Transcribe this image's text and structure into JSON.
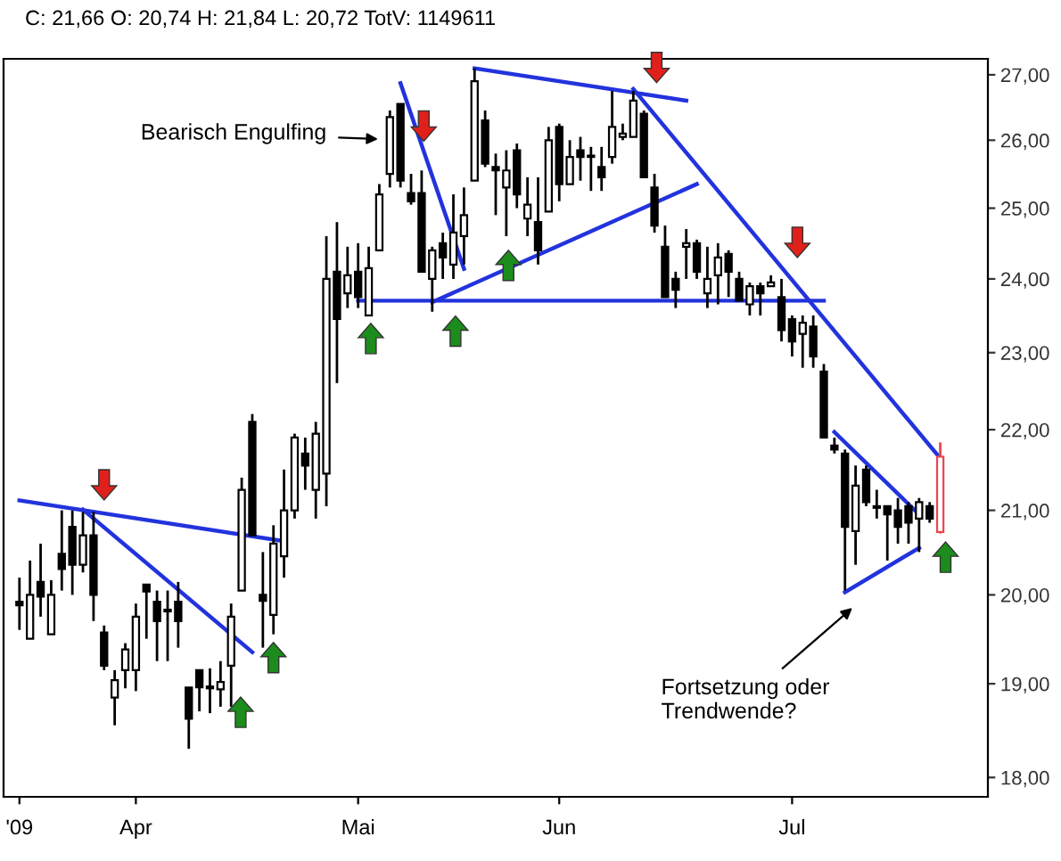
{
  "chart_data": {
    "type": "candlestick",
    "title": "C: 21,66 O: 20,74 H: 21,84 L: 20,72 TotV: 1149611",
    "categories": [
      "'09",
      null,
      null,
      null,
      null,
      null,
      null,
      null,
      null,
      null,
      null,
      "Apr",
      null,
      null,
      null,
      null,
      null,
      null,
      null,
      null,
      null,
      null,
      null,
      null,
      null,
      null,
      null,
      null,
      null,
      null,
      null,
      null,
      "Mai",
      null,
      null,
      null,
      null,
      null,
      null,
      null,
      null,
      null,
      null,
      null,
      null,
      null,
      null,
      null,
      null,
      null,
      null,
      "Jun",
      null,
      null,
      null,
      null,
      null,
      null,
      null,
      null,
      null,
      null,
      null,
      null,
      null,
      null,
      null,
      null,
      null,
      null,
      null,
      null,
      null,
      "Jul",
      null,
      null,
      null,
      null,
      null,
      null,
      null,
      null,
      null,
      null,
      null,
      null,
      null,
      null
    ],
    "ohlc": [
      [
        19.92,
        20.2,
        19.6,
        19.88
      ],
      [
        19.5,
        20.4,
        19.5,
        20.0
      ],
      [
        20.15,
        20.6,
        19.75,
        19.98
      ],
      [
        19.55,
        20.17,
        19.55,
        20.0
      ],
      [
        20.48,
        21.0,
        20.05,
        20.3
      ],
      [
        20.8,
        21.0,
        20.0,
        20.35
      ],
      [
        20.35,
        20.98,
        20.26,
        20.7
      ],
      [
        20.7,
        20.98,
        19.7,
        20.0
      ],
      [
        19.57,
        19.65,
        19.15,
        19.2
      ],
      [
        18.85,
        19.15,
        18.55,
        19.04
      ],
      [
        19.15,
        19.45,
        18.95,
        19.38
      ],
      [
        19.15,
        19.9,
        18.92,
        19.75
      ],
      [
        20.12,
        20.12,
        19.5,
        20.04
      ],
      [
        19.92,
        20.05,
        19.25,
        19.7
      ],
      [
        19.83,
        20.05,
        19.25,
        19.81
      ],
      [
        19.92,
        20.15,
        19.4,
        19.7
      ],
      [
        18.96,
        18.96,
        18.3,
        18.62
      ],
      [
        19.15,
        19.15,
        18.7,
        18.96
      ],
      [
        18.97,
        19.17,
        18.68,
        18.95
      ],
      [
        18.94,
        19.25,
        18.75,
        19.02
      ],
      [
        19.2,
        19.9,
        18.75,
        19.75
      ],
      [
        20.05,
        21.4,
        20.05,
        21.25
      ],
      [
        22.1,
        22.2,
        20.7,
        20.7
      ],
      [
        20.0,
        20.5,
        19.4,
        19.93
      ],
      [
        19.77,
        20.82,
        19.55,
        20.6
      ],
      [
        20.45,
        21.5,
        20.2,
        21.0
      ],
      [
        21.0,
        21.95,
        20.9,
        21.9
      ],
      [
        21.7,
        21.9,
        21.25,
        21.55
      ],
      [
        21.25,
        22.1,
        20.9,
        21.95
      ],
      [
        21.45,
        24.6,
        21.05,
        24.0
      ],
      [
        24.1,
        24.8,
        22.6,
        23.45
      ],
      [
        23.8,
        24.45,
        23.6,
        24.05
      ],
      [
        24.1,
        24.5,
        23.6,
        23.75
      ],
      [
        23.5,
        24.45,
        23.5,
        24.15
      ],
      [
        24.4,
        25.35,
        24.4,
        25.2
      ],
      [
        25.5,
        26.45,
        25.3,
        26.35
      ],
      [
        26.55,
        26.55,
        25.3,
        25.4
      ],
      [
        25.22,
        25.5,
        25.05,
        25.1
      ],
      [
        25.22,
        25.55,
        24.1,
        24.1
      ],
      [
        24.0,
        24.45,
        23.55,
        24.4
      ],
      [
        24.5,
        24.65,
        24.0,
        24.3
      ],
      [
        24.2,
        25.2,
        24.0,
        24.65
      ],
      [
        24.6,
        25.3,
        24.2,
        24.9
      ],
      [
        25.4,
        27.1,
        25.4,
        26.9
      ],
      [
        26.3,
        26.45,
        25.6,
        25.65
      ],
      [
        25.6,
        25.8,
        24.9,
        25.55
      ],
      [
        25.3,
        25.85,
        24.6,
        25.55
      ],
      [
        25.85,
        25.95,
        25.0,
        25.2
      ],
      [
        24.85,
        25.45,
        24.6,
        25.05
      ],
      [
        24.8,
        25.45,
        24.2,
        24.4
      ],
      [
        24.95,
        26.2,
        24.95,
        26.0
      ],
      [
        26.2,
        26.25,
        25.1,
        25.35
      ],
      [
        25.35,
        26.0,
        25.35,
        25.75
      ],
      [
        25.85,
        26.05,
        25.4,
        25.75
      ],
      [
        25.77,
        25.9,
        25.25,
        25.75
      ],
      [
        25.6,
        25.9,
        25.25,
        25.45
      ],
      [
        25.75,
        26.75,
        25.65,
        26.2
      ],
      [
        26.05,
        26.25,
        26.0,
        26.1
      ],
      [
        26.05,
        26.75,
        26.05,
        26.6
      ],
      [
        26.4,
        26.45,
        25.45,
        25.45
      ],
      [
        25.3,
        25.5,
        24.65,
        24.75
      ],
      [
        24.45,
        24.75,
        23.75,
        23.75
      ],
      [
        24.0,
        24.1,
        23.6,
        23.85
      ],
      [
        24.45,
        24.7,
        24.0,
        24.5
      ],
      [
        24.5,
        24.55,
        24.0,
        24.1
      ],
      [
        23.8,
        24.45,
        23.6,
        24.0
      ],
      [
        24.05,
        24.5,
        23.65,
        24.3
      ],
      [
        24.35,
        24.4,
        23.75,
        24.1
      ],
      [
        24.0,
        24.1,
        23.7,
        23.7
      ],
      [
        23.65,
        23.95,
        23.5,
        23.9
      ],
      [
        23.9,
        23.95,
        23.5,
        23.8
      ],
      [
        23.9,
        24.05,
        23.9,
        23.95
      ],
      [
        23.75,
        24.0,
        23.15,
        23.3
      ],
      [
        23.45,
        23.5,
        22.95,
        23.15
      ],
      [
        23.25,
        23.5,
        22.8,
        23.4
      ],
      [
        23.35,
        23.5,
        22.8,
        22.95
      ],
      [
        22.75,
        22.85,
        21.9,
        21.9
      ],
      [
        21.8,
        21.9,
        21.7,
        21.75
      ],
      [
        21.7,
        21.75,
        20.05,
        20.8
      ],
      [
        20.75,
        21.55,
        20.35,
        21.3
      ],
      [
        21.5,
        21.55,
        21.05,
        21.1
      ],
      [
        21.05,
        21.25,
        20.9,
        21.03
      ],
      [
        21.05,
        21.05,
        20.4,
        20.95
      ],
      [
        21.0,
        21.15,
        20.6,
        20.8
      ],
      [
        21.05,
        21.1,
        20.6,
        20.85
      ],
      [
        20.9,
        21.15,
        20.5,
        21.1
      ],
      [
        21.05,
        21.1,
        20.85,
        20.9
      ],
      [
        20.74,
        21.84,
        20.72,
        21.66
      ]
    ],
    "colors": [
      "#000000",
      "#000000",
      "#000000",
      "#000000",
      "#000000",
      "#000000",
      "#000000",
      "#000000",
      "#000000",
      "#000000",
      "#000000",
      "#000000",
      "#000000",
      "#000000",
      "#000000",
      "#000000",
      "#000000",
      "#000000",
      "#000000",
      "#000000",
      "#000000",
      "#000000",
      "#000000",
      "#000000",
      "#000000",
      "#000000",
      "#000000",
      "#000000",
      "#000000",
      "#000000",
      "#000000",
      "#000000",
      "#000000",
      "#000000",
      "#000000",
      "#000000",
      "#000000",
      "#000000",
      "#000000",
      "#000000",
      "#000000",
      "#000000",
      "#000000",
      "#000000",
      "#000000",
      "#000000",
      "#000000",
      "#000000",
      "#000000",
      "#000000",
      "#000000",
      "#000000",
      "#000000",
      "#000000",
      "#000000",
      "#000000",
      "#000000",
      "#000000",
      "#000000",
      "#000000",
      "#000000",
      "#000000",
      "#000000",
      "#000000",
      "#000000",
      "#000000",
      "#000000",
      "#000000",
      "#000000",
      "#000000",
      "#000000",
      "#000000",
      "#000000",
      "#000000",
      "#000000",
      "#000000",
      "#000000",
      "#000000",
      "#000000",
      "#000000",
      "#000000",
      "#000000",
      "#000000",
      "#000000",
      "#000000",
      "#000000",
      "#000000",
      "#e8474d"
    ],
    "series": [
      {
        "type": "line",
        "color": "#2233dd",
        "values": [
          21.12,
          null,
          null,
          null,
          null,
          null,
          null,
          null,
          null,
          null,
          null,
          null,
          null,
          null,
          null,
          null,
          null,
          null,
          null,
          null,
          null,
          null,
          null,
          null,
          null,
          20.63,
          null,
          null,
          null,
          null,
          null,
          null,
          null,
          null,
          null,
          null,
          null,
          null,
          null,
          null,
          null,
          null,
          null,
          null,
          null,
          null,
          null,
          null,
          null,
          null,
          null,
          null,
          null,
          null,
          null,
          null,
          null,
          null,
          null,
          null,
          null,
          null,
          null,
          null,
          null,
          null,
          null,
          null,
          null,
          null,
          null,
          null,
          null,
          null,
          null,
          null,
          null,
          null,
          null,
          null,
          null,
          null,
          null,
          null,
          null,
          null,
          null,
          null
        ]
      },
      {
        "type": "line",
        "color": "#2233dd",
        "values": [
          null,
          null,
          null,
          null,
          null,
          null,
          21.01,
          null,
          null,
          null,
          null,
          null,
          null,
          null,
          null,
          null,
          null,
          null,
          null,
          null,
          null,
          null,
          19.35,
          null,
          null,
          null,
          null,
          null,
          null,
          null,
          null,
          null,
          null,
          null,
          null,
          null,
          null,
          null,
          null,
          null,
          null,
          null,
          null,
          null,
          null,
          null,
          null,
          null,
          null,
          null,
          null,
          null,
          null,
          null,
          null,
          null,
          null,
          null,
          null,
          null,
          null,
          null,
          null,
          null,
          null,
          null,
          null,
          null,
          null,
          null,
          null,
          null,
          null,
          null,
          null,
          null,
          null,
          null,
          null,
          null,
          null,
          null,
          null,
          null,
          null,
          null,
          null,
          null
        ]
      },
      {
        "type": "line",
        "color": "#2233dd",
        "values": [
          null,
          null,
          null,
          null,
          null,
          null,
          null,
          null,
          null,
          null,
          null,
          null,
          null,
          null,
          null,
          null,
          null,
          null,
          null,
          null,
          null,
          null,
          null,
          null,
          null,
          null,
          null,
          null,
          null,
          null,
          null,
          null,
          null,
          null,
          null,
          null,
          26.87,
          null,
          null,
          null,
          null,
          null,
          24.14,
          null,
          null,
          null,
          null,
          null,
          null,
          null,
          null,
          null,
          null,
          null,
          null,
          null,
          null,
          null,
          null,
          null,
          null,
          null,
          null,
          null,
          null,
          null,
          null,
          null,
          null,
          null,
          null,
          null,
          null,
          null,
          null,
          null,
          null,
          null,
          null,
          null,
          null,
          null,
          null,
          null,
          null,
          null,
          null,
          null
        ]
      },
      {
        "type": "line",
        "color": "#2233dd",
        "values": [
          null,
          null,
          null,
          null,
          null,
          null,
          null,
          null,
          null,
          null,
          null,
          null,
          null,
          null,
          null,
          null,
          null,
          null,
          null,
          null,
          null,
          null,
          null,
          null,
          null,
          null,
          null,
          null,
          null,
          null,
          null,
          null,
          23.7,
          null,
          null,
          null,
          null,
          null,
          null,
          null,
          null,
          null,
          null,
          null,
          null,
          null,
          null,
          null,
          null,
          null,
          null,
          null,
          null,
          null,
          null,
          null,
          null,
          null,
          null,
          null,
          null,
          null,
          null,
          null,
          null,
          null,
          null,
          null,
          null,
          null,
          null,
          null,
          null,
          null,
          null,
          null,
          23.7,
          null,
          null,
          null,
          null,
          null,
          null,
          null,
          null,
          null,
          null,
          null
        ]
      },
      {
        "type": "line",
        "color": "#2233dd",
        "values": [
          null,
          null,
          null,
          null,
          null,
          null,
          null,
          null,
          null,
          null,
          null,
          null,
          null,
          null,
          null,
          null,
          null,
          null,
          null,
          null,
          null,
          null,
          null,
          null,
          null,
          null,
          null,
          null,
          null,
          null,
          null,
          null,
          null,
          null,
          null,
          null,
          null,
          null,
          null,
          23.68,
          null,
          null,
          null,
          null,
          null,
          null,
          null,
          null,
          null,
          null,
          null,
          null,
          null,
          null,
          null,
          null,
          null,
          null,
          null,
          null,
          null,
          null,
          null,
          null,
          25.35,
          null,
          null,
          null,
          null,
          null,
          null,
          null,
          null,
          null,
          null,
          null,
          null,
          null,
          null,
          null,
          null,
          null,
          null,
          null,
          null,
          null,
          null,
          null
        ]
      },
      {
        "type": "line",
        "color": "#2233dd",
        "values": [
          null,
          null,
          null,
          null,
          null,
          null,
          null,
          null,
          null,
          null,
          null,
          null,
          null,
          null,
          null,
          null,
          null,
          null,
          null,
          null,
          null,
          null,
          null,
          null,
          null,
          null,
          null,
          null,
          null,
          null,
          null,
          null,
          null,
          null,
          null,
          null,
          null,
          null,
          null,
          null,
          null,
          null,
          null,
          27.1,
          null,
          null,
          null,
          null,
          null,
          null,
          null,
          null,
          null,
          null,
          null,
          null,
          null,
          null,
          null,
          null,
          null,
          null,
          null,
          26.6,
          null,
          null,
          null,
          null,
          null,
          null,
          null,
          null,
          null,
          null,
          null,
          null,
          null,
          null,
          null,
          null,
          null,
          null,
          null,
          null,
          null,
          null,
          null,
          null
        ]
      },
      {
        "type": "line",
        "color": "#2233dd",
        "values": [
          null,
          null,
          null,
          null,
          null,
          null,
          null,
          null,
          null,
          null,
          null,
          null,
          null,
          null,
          null,
          null,
          null,
          null,
          null,
          null,
          null,
          null,
          null,
          null,
          null,
          null,
          null,
          null,
          null,
          null,
          null,
          null,
          null,
          null,
          null,
          null,
          null,
          null,
          null,
          null,
          null,
          null,
          null,
          null,
          null,
          null,
          null,
          null,
          null,
          null,
          null,
          null,
          null,
          null,
          null,
          null,
          null,
          null,
          26.78,
          null,
          null,
          null,
          null,
          null,
          null,
          null,
          null,
          null,
          null,
          null,
          null,
          null,
          null,
          null,
          null,
          null,
          null,
          null,
          null,
          null,
          null,
          null,
          null,
          null,
          null,
          null,
          null,
          21.64
        ]
      },
      {
        "type": "line",
        "color": "#2233dd",
        "values": [
          null,
          null,
          null,
          null,
          null,
          null,
          null,
          null,
          null,
          null,
          null,
          null,
          null,
          null,
          null,
          null,
          null,
          null,
          null,
          null,
          null,
          null,
          null,
          null,
          null,
          null,
          null,
          null,
          null,
          null,
          null,
          null,
          null,
          null,
          null,
          null,
          null,
          null,
          null,
          null,
          null,
          null,
          null,
          null,
          null,
          null,
          null,
          null,
          null,
          null,
          null,
          null,
          null,
          null,
          null,
          null,
          null,
          null,
          null,
          null,
          null,
          null,
          null,
          null,
          null,
          null,
          null,
          null,
          null,
          null,
          null,
          null,
          null,
          null,
          null,
          null,
          null,
          21.97,
          null,
          null,
          null,
          null,
          null,
          null,
          null,
          20.95,
          null,
          null
        ]
      },
      {
        "type": "line",
        "color": "#2233dd",
        "values": [
          null,
          null,
          null,
          null,
          null,
          null,
          null,
          null,
          null,
          null,
          null,
          null,
          null,
          null,
          null,
          null,
          null,
          null,
          null,
          null,
          null,
          null,
          null,
          null,
          null,
          null,
          null,
          null,
          null,
          null,
          null,
          null,
          null,
          null,
          null,
          null,
          null,
          null,
          null,
          null,
          null,
          null,
          null,
          null,
          null,
          null,
          null,
          null,
          null,
          null,
          null,
          null,
          null,
          null,
          null,
          null,
          null,
          null,
          null,
          null,
          null,
          null,
          null,
          null,
          null,
          null,
          null,
          null,
          null,
          null,
          null,
          null,
          null,
          null,
          null,
          null,
          null,
          null,
          20.03,
          null,
          null,
          null,
          null,
          null,
          null,
          20.55,
          null,
          null
        ]
      }
    ],
    "annotations": [
      "Bearisch Engulfing",
      "Fortsetzung oder\nTrendwende?"
    ],
    "log": "y",
    "ylim": [
      17.8,
      27.25
    ],
    "yticks": [
      {
        "value": 18,
        "label": "18,00"
      },
      {
        "value": 19,
        "label": "19,00"
      },
      {
        "value": 20,
        "label": "20,00"
      },
      {
        "value": 21,
        "label": "21,00"
      },
      {
        "value": 22,
        "label": "22,00"
      },
      {
        "value": 23,
        "label": "23,00"
      },
      {
        "value": 24,
        "label": "24,00"
      },
      {
        "value": 25,
        "label": "25,00"
      },
      {
        "value": 26,
        "label": "26,00"
      },
      {
        "value": 27,
        "label": "27,00"
      }
    ]
  }
}
